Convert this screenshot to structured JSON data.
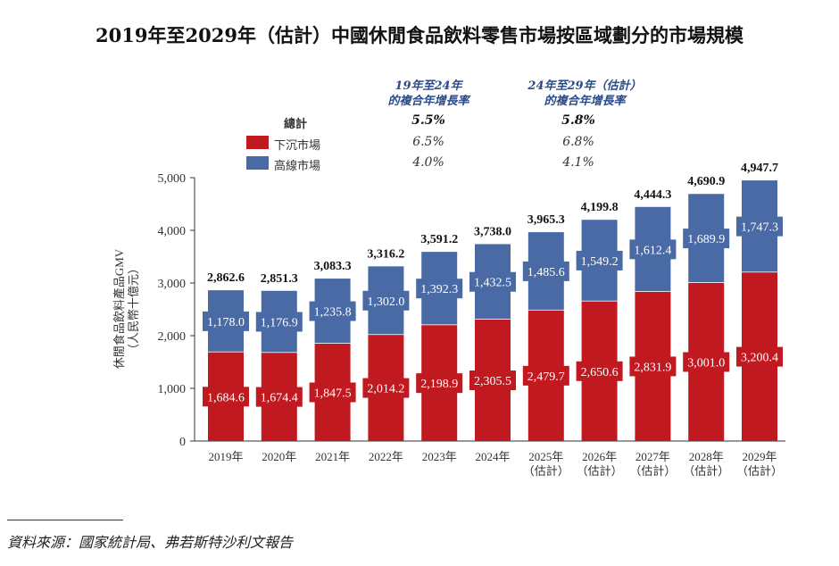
{
  "title": "2019年至2029年（估計）中國休閒食品飲料零售市場按區域劃分的市場規模",
  "cagr_table": {
    "col1_header": [
      "19年至24年",
      "的複合年增長率"
    ],
    "col2_header": [
      "24年至29年（估計）",
      "的複合年增長率"
    ],
    "rows": [
      {
        "label": "總計",
        "v1": "5.5%",
        "v2": "5.8%"
      },
      {
        "label": "下沉市場",
        "v1": "6.5%",
        "v2": "6.8%",
        "color": "#c0191f"
      },
      {
        "label": "高線市場",
        "v1": "4.0%",
        "v2": "4.1%",
        "color": "#4a6aa5"
      }
    ]
  },
  "chart_data": {
    "type": "bar",
    "stacked": true,
    "ylabel": [
      "休閒食品飲料產品GMV",
      "（人民幣十億元）"
    ],
    "ylim": [
      0,
      5000
    ],
    "yticks": [
      "0",
      "1,000",
      "2,000",
      "3,000",
      "4,000",
      "5,000"
    ],
    "categories": [
      [
        "2019年"
      ],
      [
        "2020年"
      ],
      [
        "2021年"
      ],
      [
        "2022年"
      ],
      [
        "2023年"
      ],
      [
        "2024年"
      ],
      [
        "2025年",
        "（估計）"
      ],
      [
        "2026年",
        "（估計）"
      ],
      [
        "2027年",
        "（估計）"
      ],
      [
        "2028年",
        "（估計）"
      ],
      [
        "2029年",
        "（估計）"
      ]
    ],
    "series": [
      {
        "name": "下沉市場",
        "color": "#c0191f",
        "values": [
          1684.6,
          1674.4,
          1847.5,
          2014.2,
          2198.9,
          2305.5,
          2479.7,
          2650.6,
          2831.9,
          3001.0,
          3200.4
        ]
      },
      {
        "name": "高線市場",
        "color": "#4a6aa5",
        "values": [
          1178.0,
          1176.9,
          1235.8,
          1302.0,
          1392.3,
          1432.5,
          1485.6,
          1549.2,
          1612.4,
          1689.9,
          1747.3
        ]
      }
    ],
    "totals": [
      2862.6,
      2851.3,
      3083.3,
      3316.2,
      3591.2,
      3738.0,
      3965.3,
      4199.8,
      4444.3,
      4690.9,
      4947.7
    ]
  },
  "source": "資料來源：國家統計局、弗若斯特沙利文報告"
}
